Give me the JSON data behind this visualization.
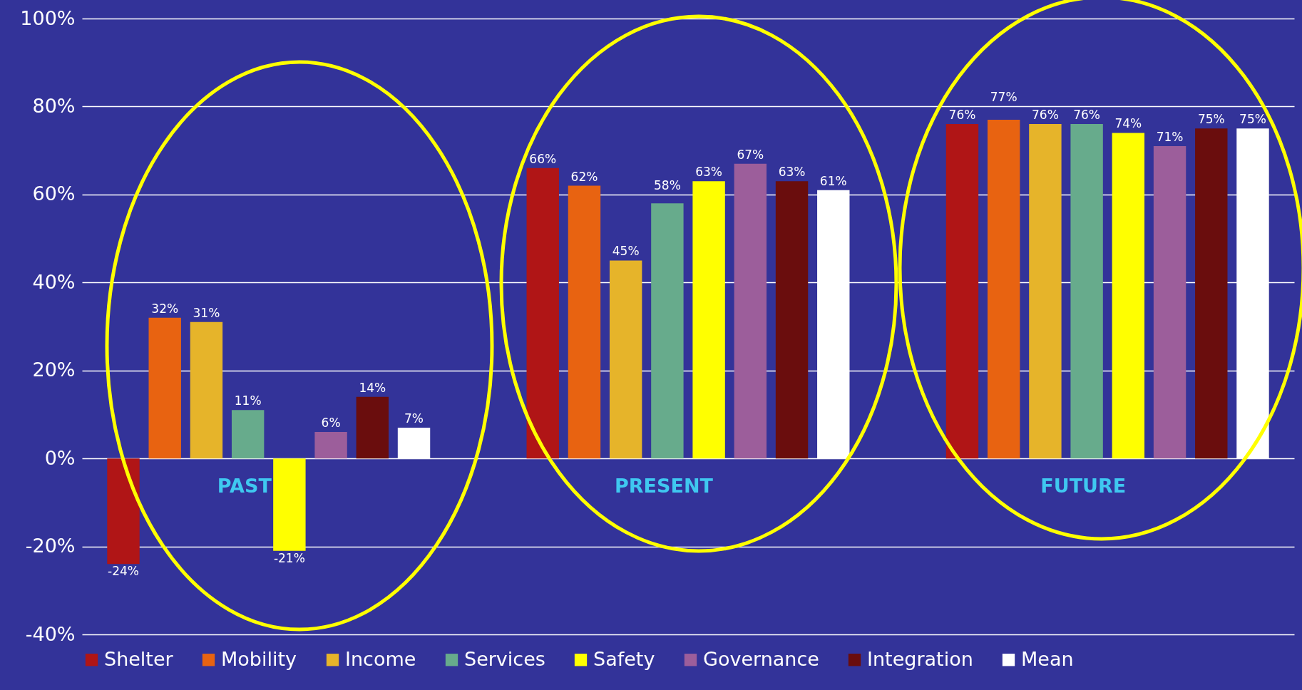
{
  "chart_data": {
    "type": "bar",
    "categories": [
      "PAST",
      "PRESENT",
      "FUTURE"
    ],
    "series": [
      {
        "name": "Shelter",
        "color": "#b01516",
        "values": [
          -24,
          66,
          76
        ],
        "value_labels": [
          "-24%",
          "66%",
          "76%"
        ]
      },
      {
        "name": "Mobility",
        "color": "#e86311",
        "values": [
          32,
          62,
          77
        ],
        "value_labels": [
          "32%",
          "62%",
          "77%"
        ]
      },
      {
        "name": "Income",
        "color": "#e6b42a",
        "values": [
          31,
          45,
          76
        ],
        "value_labels": [
          "31%",
          "45%",
          "76%"
        ]
      },
      {
        "name": "Services",
        "color": "#67ab8c",
        "values": [
          11,
          58,
          76
        ],
        "value_labels": [
          "11%",
          "58%",
          "76%"
        ]
      },
      {
        "name": "Safety",
        "color": "#ffff00",
        "values": [
          -21,
          63,
          74
        ],
        "value_labels": [
          "-21%",
          "63%",
          "74%"
        ]
      },
      {
        "name": "Governance",
        "color": "#9c5e9b",
        "values": [
          6,
          67,
          71
        ],
        "value_labels": [
          "6%",
          "67%",
          "71%"
        ]
      },
      {
        "name": "Integration",
        "color": "#6a0d0d",
        "values": [
          14,
          63,
          75
        ],
        "value_labels": [
          "14%",
          "63%",
          "75%"
        ]
      },
      {
        "name": "Mean",
        "color": "#ffffff",
        "values": [
          7,
          61,
          75
        ],
        "value_labels": [
          "7%",
          "61%",
          "75%"
        ]
      }
    ],
    "ylim": [
      -40,
      100
    ],
    "yticks": [
      {
        "value": -40,
        "label": "-40%"
      },
      {
        "value": -20,
        "label": "-20%"
      },
      {
        "value": 0,
        "label": "0%"
      },
      {
        "value": 20,
        "label": "20%"
      },
      {
        "value": 40,
        "label": "40%"
      },
      {
        "value": 60,
        "label": "60%"
      },
      {
        "value": 80,
        "label": "80%"
      },
      {
        "value": 100,
        "label": "100%"
      }
    ],
    "grid": "y",
    "legend": "bottom"
  }
}
